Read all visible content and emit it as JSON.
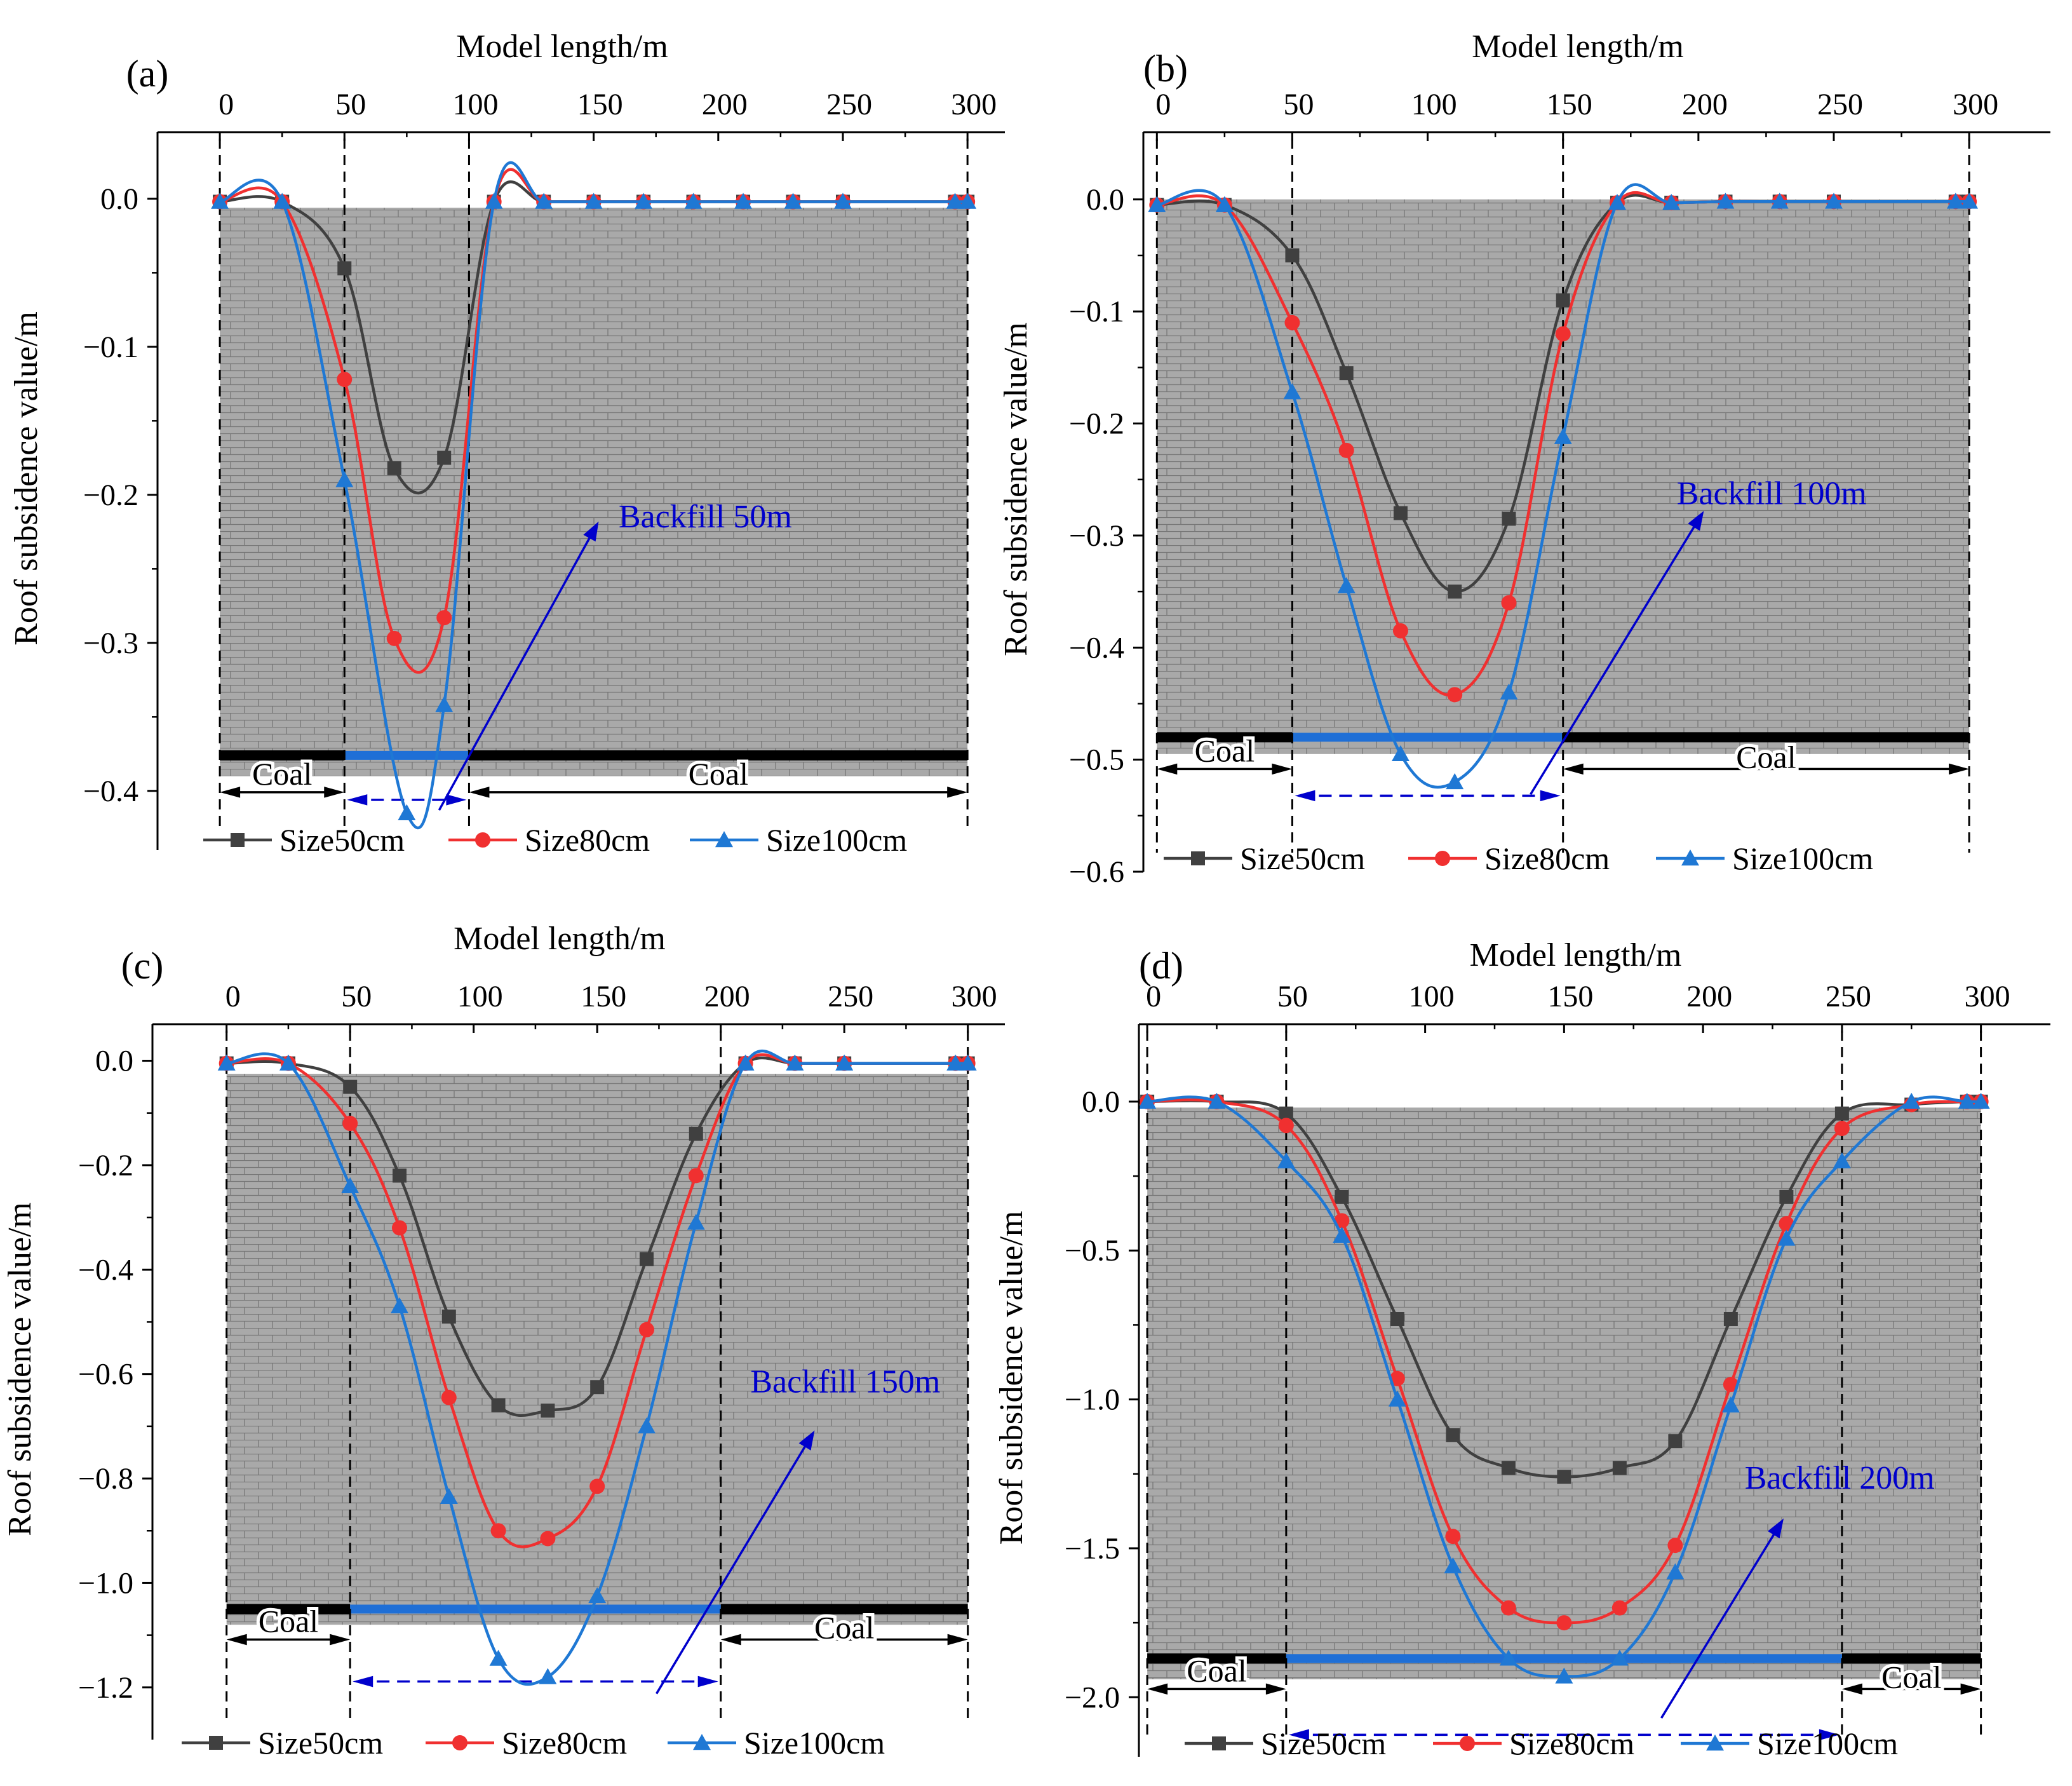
{
  "figure": {
    "colors": {
      "background": "#ffffff",
      "model_fill": "#a9a9a9",
      "block_line": "#777777",
      "coal_seam": "#000000",
      "backfill_seam": "#1f6fd6",
      "annotation": "#0000cc",
      "axis": "#000000"
    }
  },
  "chart_data": [
    {
      "type": "line",
      "panel_label": "(a)",
      "title": "",
      "xlabel": "Model length/m",
      "ylabel": "Roof subsidence value/m",
      "xlim": [
        -25,
        315
      ],
      "ylim": [
        -0.44,
        0.045
      ],
      "xticks": [
        0,
        50,
        100,
        150,
        200,
        250,
        300
      ],
      "xtick_labels": [
        "0",
        "50",
        "100",
        "150",
        "200",
        "250",
        "300"
      ],
      "yticks": [
        0.0,
        -0.1,
        -0.2,
        -0.3,
        -0.4
      ],
      "ytick_labels": [
        "0.0",
        "−0.1",
        "−0.2",
        "−0.3",
        "−0.4"
      ],
      "model_range": {
        "x": [
          0,
          300
        ],
        "y": [
          -0.39,
          -0.006
        ]
      },
      "seam_y": -0.376,
      "dashed_lines_x": [
        0,
        50,
        100,
        300
      ],
      "backfill_range": [
        50,
        100
      ],
      "coal_labels": [
        "Coal",
        "Coal"
      ],
      "annotation": {
        "text": "Backfill 50m",
        "x_data": 160,
        "y_data": -0.222,
        "arrow_from": [
          88,
          -0.413
        ],
        "arrow_to": [
          152,
          -0.218
        ]
      },
      "legend_position": "bottom",
      "series": [
        {
          "name": "Size50cm",
          "color": "#404040",
          "marker": "square",
          "x": [
            0,
            25,
            50,
            70,
            90,
            110,
            130,
            150,
            170,
            190,
            210,
            230,
            250,
            295,
            300
          ],
          "y": [
            -0.002,
            -0.002,
            -0.047,
            -0.182,
            -0.175,
            -0.002,
            -0.002,
            -0.002,
            -0.002,
            -0.002,
            -0.002,
            -0.002,
            -0.002,
            -0.002,
            -0.002
          ]
        },
        {
          "name": "Size80cm",
          "color": "#f03030",
          "marker": "circle",
          "x": [
            0,
            25,
            50,
            70,
            90,
            110,
            130,
            150,
            170,
            190,
            210,
            230,
            250,
            295,
            300
          ],
          "y": [
            -0.002,
            -0.002,
            -0.122,
            -0.297,
            -0.283,
            -0.002,
            -0.002,
            -0.002,
            -0.002,
            -0.002,
            -0.002,
            -0.002,
            -0.002,
            -0.002,
            -0.002
          ]
        },
        {
          "name": "Size100cm",
          "color": "#1f78d4",
          "marker": "triangle",
          "x": [
            0,
            25,
            50,
            75,
            90,
            110,
            130,
            150,
            170,
            190,
            210,
            230,
            250,
            295,
            300
          ],
          "y": [
            -0.002,
            -0.002,
            -0.19,
            -0.415,
            -0.342,
            -0.002,
            -0.002,
            -0.002,
            -0.002,
            -0.002,
            -0.002,
            -0.002,
            -0.002,
            -0.002,
            -0.002
          ]
        }
      ]
    },
    {
      "type": "line",
      "panel_label": "(b)",
      "title": "",
      "xlabel": "Model length/m",
      "ylabel": "Roof subsidence value/m",
      "xlim": [
        -5,
        330
      ],
      "ylim": [
        -0.6,
        0.06
      ],
      "xticks": [
        0,
        50,
        100,
        150,
        200,
        250,
        300
      ],
      "xtick_labels": [
        "0",
        "50",
        "100",
        "150",
        "200",
        "250",
        "300"
      ],
      "yticks": [
        0.0,
        -0.1,
        -0.2,
        -0.3,
        -0.4,
        -0.5,
        -0.6
      ],
      "ytick_labels": [
        "0.0",
        "−0.1",
        "−0.2",
        "−0.3",
        "−0.4",
        "−0.5",
        "−0.6"
      ],
      "model_range": {
        "x": [
          0,
          300
        ],
        "y": [
          -0.495,
          0.0
        ]
      },
      "seam_y": -0.48,
      "dashed_lines_x": [
        0,
        50,
        150,
        300
      ],
      "backfill_range": [
        50,
        150
      ],
      "coal_labels": [
        "Coal",
        "Coal"
      ],
      "annotation": {
        "text": "Backfill 100m",
        "x_data": 192,
        "y_data": -0.272,
        "arrow_from": [
          138,
          -0.531
        ],
        "arrow_to": [
          202,
          -0.278
        ]
      },
      "legend_position": "bottom",
      "series": [
        {
          "name": "Size50cm",
          "color": "#404040",
          "marker": "square",
          "x": [
            0,
            25,
            50,
            70,
            90,
            110,
            130,
            150,
            170,
            190,
            210,
            230,
            250,
            295,
            300
          ],
          "y": [
            -0.005,
            -0.005,
            -0.05,
            -0.155,
            -0.28,
            -0.35,
            -0.285,
            -0.09,
            -0.003,
            -0.003,
            -0.002,
            -0.002,
            -0.002,
            -0.002,
            -0.002
          ]
        },
        {
          "name": "Size80cm",
          "color": "#f03030",
          "marker": "circle",
          "x": [
            0,
            25,
            50,
            70,
            90,
            110,
            130,
            150,
            170,
            190,
            210,
            230,
            250,
            295,
            300
          ],
          "y": [
            -0.005,
            -0.005,
            -0.11,
            -0.224,
            -0.385,
            -0.442,
            -0.36,
            -0.12,
            -0.003,
            -0.003,
            -0.002,
            -0.002,
            -0.002,
            -0.002,
            -0.002
          ]
        },
        {
          "name": "Size100cm",
          "color": "#1f78d4",
          "marker": "triangle",
          "x": [
            0,
            25,
            50,
            70,
            90,
            110,
            130,
            150,
            170,
            190,
            210,
            230,
            250,
            295,
            300
          ],
          "y": [
            -0.005,
            -0.005,
            -0.172,
            -0.345,
            -0.495,
            -0.52,
            -0.44,
            -0.212,
            -0.003,
            -0.003,
            -0.002,
            -0.002,
            -0.002,
            -0.002,
            -0.002
          ]
        }
      ]
    },
    {
      "type": "line",
      "panel_label": "(c)",
      "title": "",
      "xlabel": "Model length/m",
      "ylabel": "Roof subsidence value/m",
      "xlim": [
        -30,
        315
      ],
      "ylim": [
        -1.3,
        0.07
      ],
      "xticks": [
        0,
        50,
        100,
        150,
        200,
        250,
        300
      ],
      "xtick_labels": [
        "0",
        "50",
        "100",
        "150",
        "200",
        "250",
        "300"
      ],
      "yticks": [
        0.0,
        -0.2,
        -0.4,
        -0.6,
        -0.8,
        -1.0,
        -1.2
      ],
      "ytick_labels": [
        "0.0",
        "−0.2",
        "−0.4",
        "−0.6",
        "−0.8",
        "−1.0",
        "−1.2"
      ],
      "model_range": {
        "x": [
          0,
          300
        ],
        "y": [
          -1.08,
          -0.025
        ]
      },
      "seam_y": -1.05,
      "dashed_lines_x": [
        0,
        50,
        200,
        300
      ],
      "backfill_range": [
        50,
        200
      ],
      "coal_labels": [
        "Coal",
        "Coal"
      ],
      "annotation": {
        "text": "Backfill 150m",
        "x_data": 212,
        "y_data": -0.635,
        "arrow_from": [
          174,
          -1.212
        ],
        "arrow_to": [
          238,
          -0.708
        ]
      },
      "legend_position": "bottom",
      "series": [
        {
          "name": "Size50cm",
          "color": "#404040",
          "marker": "square",
          "x": [
            0,
            25,
            50,
            70,
            90,
            110,
            130,
            150,
            170,
            190,
            210,
            230,
            250,
            295,
            300
          ],
          "y": [
            -0.005,
            -0.005,
            -0.05,
            -0.22,
            -0.49,
            -0.66,
            -0.67,
            -0.625,
            -0.38,
            -0.14,
            -0.005,
            -0.005,
            -0.005,
            -0.005,
            -0.005
          ]
        },
        {
          "name": "Size80cm",
          "color": "#f03030",
          "marker": "circle",
          "x": [
            0,
            25,
            50,
            70,
            90,
            110,
            130,
            150,
            170,
            190,
            210,
            230,
            250,
            295,
            300
          ],
          "y": [
            -0.005,
            -0.005,
            -0.12,
            -0.32,
            -0.645,
            -0.9,
            -0.915,
            -0.815,
            -0.515,
            -0.22,
            -0.005,
            -0.005,
            -0.005,
            -0.005,
            -0.005
          ]
        },
        {
          "name": "Size100cm",
          "color": "#1f78d4",
          "marker": "triangle",
          "x": [
            0,
            25,
            50,
            70,
            90,
            110,
            130,
            150,
            170,
            190,
            210,
            230,
            250,
            295,
            300
          ],
          "y": [
            -0.005,
            -0.005,
            -0.24,
            -0.47,
            -0.835,
            -1.145,
            -1.18,
            -1.025,
            -0.7,
            -0.31,
            -0.005,
            -0.005,
            -0.005,
            -0.005,
            -0.005
          ]
        }
      ]
    },
    {
      "type": "line",
      "panel_label": "(d)",
      "title": "",
      "xlabel": "Model length/m",
      "ylabel": "Roof subsidence value/m",
      "xlim": [
        -3,
        325
      ],
      "ylim": [
        -2.2,
        0.26
      ],
      "xticks": [
        0,
        50,
        100,
        150,
        200,
        250,
        300
      ],
      "xtick_labels": [
        "0",
        "50",
        "100",
        "150",
        "200",
        "250",
        "300"
      ],
      "yticks": [
        0.0,
        -0.5,
        -1.0,
        -1.5,
        -2.0
      ],
      "ytick_labels": [
        "0.0",
        "−0.5",
        "−1.0",
        "−1.5",
        "−2.0"
      ],
      "model_range": {
        "x": [
          0,
          300
        ],
        "y": [
          -1.94,
          -0.02
        ]
      },
      "seam_y": -1.87,
      "dashed_lines_x": [
        0,
        50,
        250,
        300
      ],
      "backfill_range": [
        50,
        250
      ],
      "coal_labels": [
        "Coal",
        "Coal"
      ],
      "annotation": {
        "text": "Backfill 200m",
        "x_data": 215,
        "y_data": -1.3,
        "arrow_from": [
          185,
          -2.07
        ],
        "arrow_to": [
          229,
          -1.4
        ]
      },
      "legend_position": "bottom",
      "series": [
        {
          "name": "Size50cm",
          "color": "#404040",
          "marker": "square",
          "x": [
            0,
            25,
            50,
            70,
            90,
            110,
            130,
            150,
            170,
            190,
            210,
            230,
            250,
            275,
            295,
            300
          ],
          "y": [
            0.0,
            0.0,
            -0.04,
            -0.32,
            -0.73,
            -1.12,
            -1.23,
            -1.26,
            -1.23,
            -1.14,
            -0.73,
            -0.32,
            -0.04,
            -0.01,
            0.0,
            0.0
          ]
        },
        {
          "name": "Size80cm",
          "color": "#f03030",
          "marker": "circle",
          "x": [
            0,
            25,
            50,
            70,
            90,
            110,
            130,
            150,
            170,
            190,
            210,
            230,
            250,
            275,
            295,
            300
          ],
          "y": [
            0.0,
            0.0,
            -0.08,
            -0.4,
            -0.93,
            -1.46,
            -1.7,
            -1.75,
            -1.7,
            -1.49,
            -0.95,
            -0.41,
            -0.09,
            -0.01,
            0.0,
            0.0
          ]
        },
        {
          "name": "Size100cm",
          "color": "#1f78d4",
          "marker": "triangle",
          "x": [
            0,
            25,
            50,
            70,
            90,
            110,
            130,
            150,
            170,
            190,
            210,
            230,
            250,
            275,
            295,
            300
          ],
          "y": [
            0.0,
            0.0,
            -0.2,
            -0.45,
            -1.0,
            -1.56,
            -1.87,
            -1.93,
            -1.87,
            -1.58,
            -1.02,
            -0.46,
            -0.2,
            0.0,
            0.0,
            0.0
          ]
        }
      ]
    }
  ]
}
